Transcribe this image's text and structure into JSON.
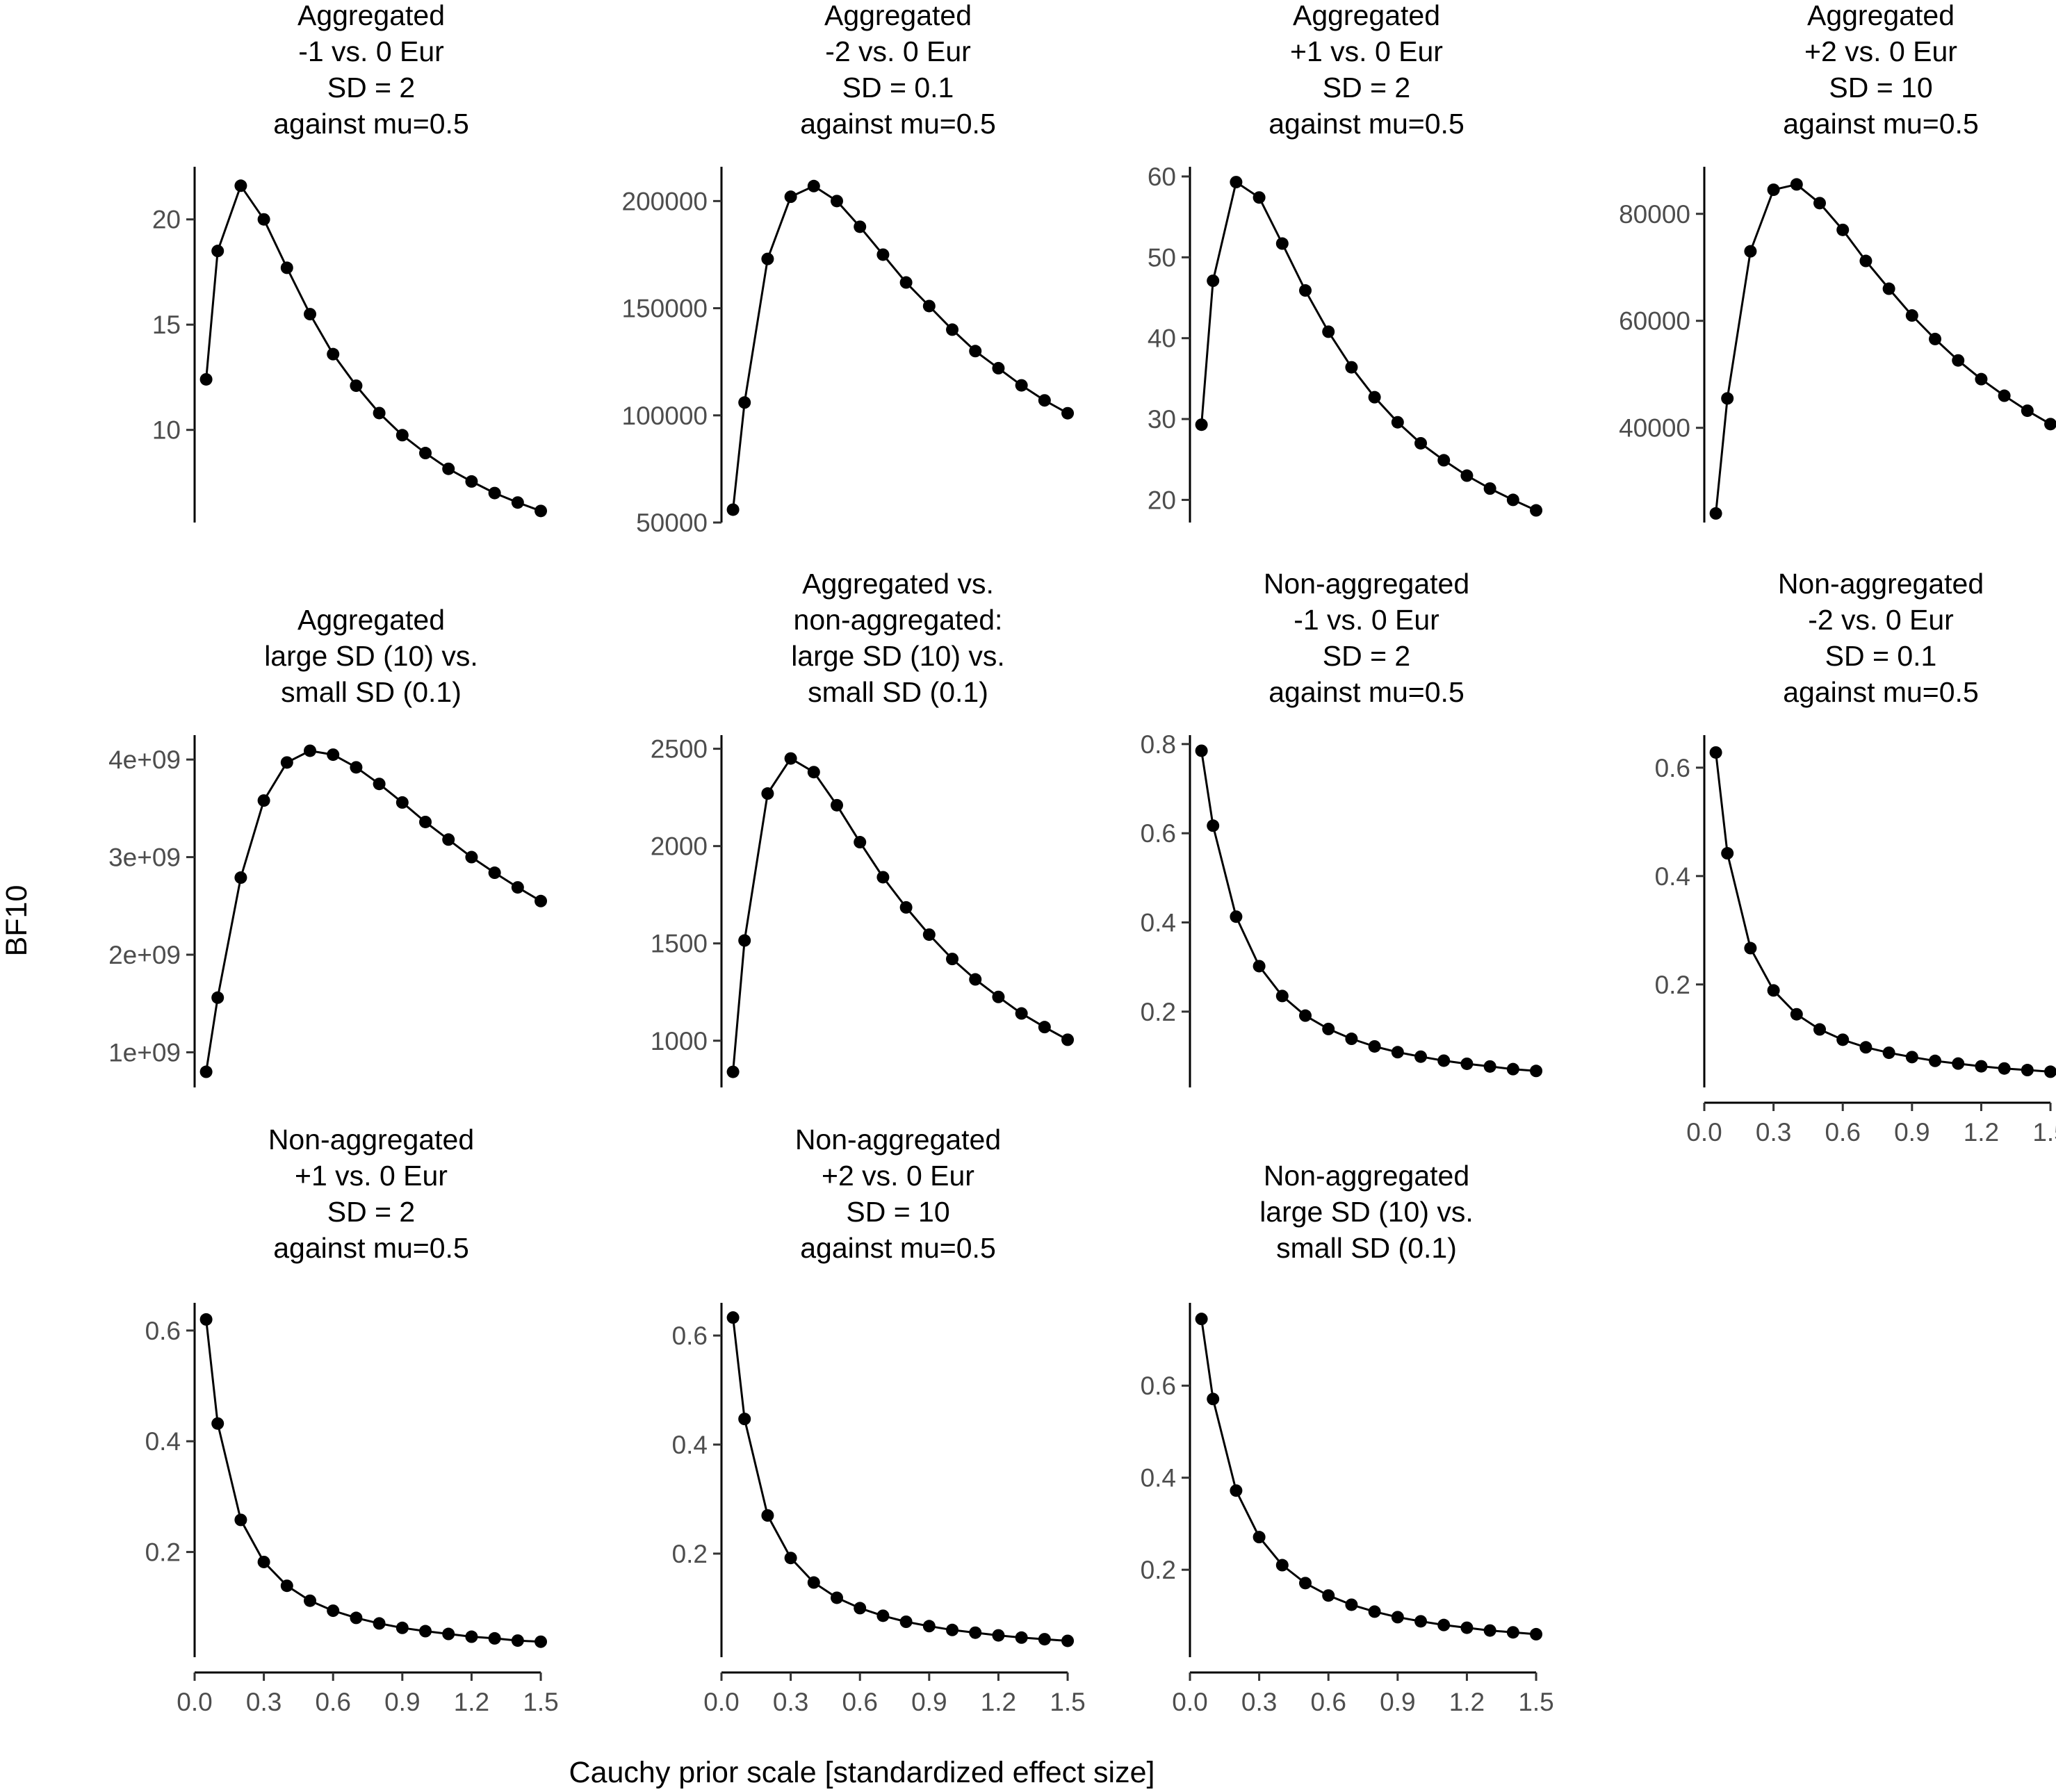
{
  "figure": {
    "ylabel": "BF10",
    "xlabel": "Cauchy prior scale [standardized effect size]"
  },
  "chart_data": [
    {
      "type": "line",
      "title": [
        "Aggregated",
        "-1 vs. 0 Eur",
        "SD = 2",
        "against mu=0.5"
      ],
      "x": [
        0.05,
        0.1,
        0.2,
        0.3,
        0.4,
        0.5,
        0.6,
        0.7,
        0.8,
        0.9,
        1.0,
        1.1,
        1.2,
        1.3,
        1.4,
        1.5
      ],
      "values": [
        12.4,
        18.5,
        21.6,
        20.0,
        17.7,
        15.5,
        13.6,
        12.1,
        10.8,
        9.75,
        8.9,
        8.15,
        7.55,
        7.0,
        6.55,
        6.15
      ],
      "yticks": [
        10,
        15,
        20
      ],
      "ytick_labels": [
        "10",
        "15",
        "20"
      ],
      "ylim": [
        5.6,
        22.5
      ],
      "xticks_shown": false
    },
    {
      "type": "line",
      "title": [
        "Aggregated",
        "-2 vs. 0 Eur",
        "SD = 0.1",
        "against mu=0.5"
      ],
      "x": [
        0.05,
        0.1,
        0.2,
        0.3,
        0.4,
        0.5,
        0.6,
        0.7,
        0.8,
        0.9,
        1.0,
        1.1,
        1.2,
        1.3,
        1.4,
        1.5
      ],
      "values": [
        56000,
        106000,
        173000,
        202000,
        207000,
        200000,
        188000,
        175000,
        162000,
        151000,
        140000,
        130000,
        122000,
        114000,
        107000,
        101000
      ],
      "yticks": [
        50000,
        100000,
        150000,
        200000
      ],
      "ytick_labels": [
        "50000",
        "100000",
        "150000",
        "200000"
      ],
      "ylim": [
        50000,
        216000
      ],
      "xticks_shown": false
    },
    {
      "type": "line",
      "title": [
        "Aggregated",
        "+1 vs. 0 Eur",
        "SD = 2",
        "against mu=0.5"
      ],
      "x": [
        0.05,
        0.1,
        0.2,
        0.3,
        0.4,
        0.5,
        0.6,
        0.7,
        0.8,
        0.9,
        1.0,
        1.1,
        1.2,
        1.3,
        1.4,
        1.5
      ],
      "values": [
        29.3,
        47.1,
        59.3,
        57.4,
        51.7,
        45.9,
        40.8,
        36.4,
        32.7,
        29.6,
        27.0,
        24.9,
        23.0,
        21.4,
        20.0,
        18.7
      ],
      "yticks": [
        20,
        30,
        40,
        50,
        60
      ],
      "ytick_labels": [
        "20",
        "30",
        "40",
        "50",
        "60"
      ],
      "ylim": [
        17.2,
        61.2
      ],
      "xticks_shown": false
    },
    {
      "type": "line",
      "title": [
        "Aggregated",
        "+2 vs. 0 Eur",
        "SD = 10",
        "against mu=0.5"
      ],
      "x": [
        0.05,
        0.1,
        0.2,
        0.3,
        0.4,
        0.5,
        0.6,
        0.7,
        0.8,
        0.9,
        1.0,
        1.1,
        1.2,
        1.3,
        1.4,
        1.5
      ],
      "values": [
        24000,
        45500,
        73000,
        84500,
        85500,
        82000,
        77000,
        71200,
        66000,
        61000,
        56600,
        52600,
        49100,
        46000,
        43200,
        40700
      ],
      "yticks": [
        40000,
        60000,
        80000
      ],
      "ytick_labels": [
        "40000",
        "60000",
        "80000"
      ],
      "ylim": [
        22300,
        88800
      ],
      "xticks_shown": false
    },
    {
      "type": "line",
      "title": [
        "Aggregated",
        "large SD (10) vs.",
        "small SD (0.1)"
      ],
      "x": [
        0.05,
        0.1,
        0.2,
        0.3,
        0.4,
        0.5,
        0.6,
        0.7,
        0.8,
        0.9,
        1.0,
        1.1,
        1.2,
        1.3,
        1.4,
        1.5
      ],
      "values": [
        800000000,
        1560000000,
        2790000000,
        3580000000,
        3970000000,
        4090000000,
        4050000000,
        3920000000,
        3750000000,
        3560000000,
        3360000000,
        3180000000,
        3000000000,
        2840000000,
        2690000000,
        2550000000
      ],
      "yticks": [
        1000000000,
        2000000000,
        3000000000,
        4000000000
      ],
      "ytick_labels": [
        "1e+09",
        "2e+09",
        "3e+09",
        "4e+09"
      ],
      "ylim": [
        640000000,
        4250000000
      ],
      "xticks_shown": false
    },
    {
      "type": "line",
      "title": [
        "Aggregated vs.",
        "non-aggregated:",
        "large SD (10) vs.",
        "small SD (0.1)"
      ],
      "x": [
        0.05,
        0.1,
        0.2,
        0.3,
        0.4,
        0.5,
        0.6,
        0.7,
        0.8,
        0.9,
        1.0,
        1.1,
        1.2,
        1.3,
        1.4,
        1.5
      ],
      "values": [
        840,
        1515,
        2270,
        2450,
        2380,
        2210,
        2020,
        1840,
        1685,
        1545,
        1420,
        1315,
        1225,
        1140,
        1070,
        1005
      ],
      "yticks": [
        1000,
        1500,
        2000,
        2500
      ],
      "ytick_labels": [
        "1000",
        "1500",
        "2000",
        "2500"
      ],
      "ylim": [
        760,
        2570
      ],
      "xticks_shown": false
    },
    {
      "type": "line",
      "title": [
        "Non-aggregated",
        "-1 vs. 0 Eur",
        "SD = 2",
        "against mu=0.5"
      ],
      "x": [
        0.05,
        0.1,
        0.2,
        0.3,
        0.4,
        0.5,
        0.6,
        0.7,
        0.8,
        0.9,
        1.0,
        1.1,
        1.2,
        1.3,
        1.4,
        1.5
      ],
      "values": [
        0.785,
        0.617,
        0.413,
        0.302,
        0.235,
        0.191,
        0.161,
        0.139,
        0.122,
        0.109,
        0.099,
        0.09,
        0.083,
        0.077,
        0.071,
        0.067
      ],
      "yticks": [
        0.2,
        0.4,
        0.6,
        0.8
      ],
      "ytick_labels": [
        "0.2",
        "0.4",
        "0.6",
        "0.8"
      ],
      "ylim": [
        0.03,
        0.82
      ],
      "xticks_shown": false
    },
    {
      "type": "line",
      "title": [
        "Non-aggregated",
        "-2 vs. 0 Eur",
        "SD = 0.1",
        "against mu=0.5"
      ],
      "x": [
        0.05,
        0.1,
        0.2,
        0.3,
        0.4,
        0.5,
        0.6,
        0.7,
        0.8,
        0.9,
        1.0,
        1.1,
        1.2,
        1.3,
        1.4,
        1.5
      ],
      "values": [
        0.628,
        0.442,
        0.267,
        0.189,
        0.145,
        0.117,
        0.098,
        0.084,
        0.074,
        0.066,
        0.059,
        0.054,
        0.049,
        0.045,
        0.042,
        0.039
      ],
      "yticks": [
        0.2,
        0.4,
        0.6
      ],
      "ytick_labels": [
        "0.2",
        "0.4",
        "0.6"
      ],
      "ylim": [
        0.01,
        0.66
      ],
      "xticks_shown": true
    },
    {
      "type": "line",
      "title": [
        "Non-aggregated",
        "+1 vs. 0 Eur",
        "SD = 2",
        "against mu=0.5"
      ],
      "x": [
        0.05,
        0.1,
        0.2,
        0.3,
        0.4,
        0.5,
        0.6,
        0.7,
        0.8,
        0.9,
        1.0,
        1.1,
        1.2,
        1.3,
        1.4,
        1.5
      ],
      "values": [
        0.62,
        0.432,
        0.258,
        0.182,
        0.139,
        0.112,
        0.094,
        0.081,
        0.071,
        0.063,
        0.057,
        0.052,
        0.047,
        0.044,
        0.04,
        0.038
      ],
      "yticks": [
        0.2,
        0.4,
        0.6
      ],
      "ytick_labels": [
        "0.2",
        "0.4",
        "0.6"
      ],
      "ylim": [
        0.01,
        0.65
      ],
      "xticks_shown": true
    },
    {
      "type": "line",
      "title": [
        "Non-aggregated",
        "+2 vs. 0 Eur",
        "SD = 10",
        "against mu=0.5"
      ],
      "x": [
        0.05,
        0.1,
        0.2,
        0.3,
        0.4,
        0.5,
        0.6,
        0.7,
        0.8,
        0.9,
        1.0,
        1.1,
        1.2,
        1.3,
        1.4,
        1.5
      ],
      "values": [
        0.633,
        0.447,
        0.27,
        0.192,
        0.147,
        0.119,
        0.1,
        0.086,
        0.075,
        0.067,
        0.06,
        0.055,
        0.05,
        0.046,
        0.043,
        0.04
      ],
      "yticks": [
        0.2,
        0.4,
        0.6
      ],
      "ytick_labels": [
        "0.2",
        "0.4",
        "0.6"
      ],
      "ylim": [
        0.01,
        0.66
      ],
      "xticks_shown": true
    },
    {
      "type": "line",
      "title": [
        "Non-aggregated",
        "large SD (10) vs.",
        "small SD (0.1)"
      ],
      "x": [
        0.05,
        0.1,
        0.2,
        0.3,
        0.4,
        0.5,
        0.6,
        0.7,
        0.8,
        0.9,
        1.0,
        1.1,
        1.2,
        1.3,
        1.4,
        1.5
      ],
      "values": [
        0.745,
        0.571,
        0.372,
        0.271,
        0.21,
        0.171,
        0.144,
        0.124,
        0.109,
        0.097,
        0.088,
        0.08,
        0.074,
        0.068,
        0.064,
        0.06
      ],
      "yticks": [
        0.2,
        0.4,
        0.6
      ],
      "ytick_labels": [
        "0.2",
        "0.4",
        "0.6"
      ],
      "ylim": [
        0.01,
        0.78
      ],
      "xticks_shown": true
    }
  ],
  "x_axis": {
    "xlim": [
      0.0,
      1.53
    ],
    "ticks": [
      0.0,
      0.3,
      0.6,
      0.9,
      1.2,
      1.5
    ],
    "tick_labels": [
      "0.0",
      "0.3",
      "0.6",
      "0.9",
      "1.2",
      "1.5"
    ]
  }
}
